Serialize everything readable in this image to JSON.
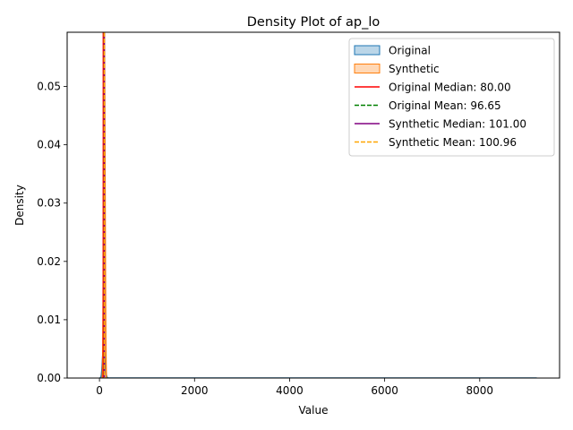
{
  "chart_data": {
    "type": "area",
    "title": "Density Plot of ap_lo",
    "xlabel": "Value",
    "ylabel": "Density",
    "xlim": [
      -680,
      9680
    ],
    "ylim": [
      0,
      0.0593
    ],
    "xticks": [
      0,
      2000,
      4000,
      6000,
      8000
    ],
    "xtick_labels": [
      "0",
      "2000",
      "4000",
      "6000",
      "8000"
    ],
    "yticks": [
      0,
      0.01,
      0.02,
      0.03,
      0.04,
      0.05
    ],
    "ytick_labels": [
      "0.00",
      "0.01",
      "0.02",
      "0.03",
      "0.04",
      "0.05"
    ],
    "grid": false,
    "legend_position": "top-right",
    "series": [
      {
        "name": "Original",
        "kind": "density",
        "color": "#1f77b4",
        "x": [
          -1,
          10,
          20,
          30,
          40,
          50,
          60,
          70,
          80,
          90,
          100,
          110,
          120,
          130,
          140,
          150,
          160,
          170,
          180,
          200,
          300,
          500,
          1000,
          2000,
          4000,
          6000,
          8000,
          9200
        ],
        "y": [
          0,
          1e-05,
          5e-05,
          0.0002,
          0.0006,
          0.0015,
          0.0029,
          0.0043,
          0.0052,
          0.0053,
          0.0048,
          0.0037,
          0.0025,
          0.0015,
          0.0008,
          0.0004,
          0.00018,
          7e-05,
          3e-05,
          1e-05,
          3e-06,
          2e-06,
          2e-06,
          2e-06,
          2e-06,
          2e-06,
          2e-06,
          1e-06
        ]
      },
      {
        "name": "Synthetic",
        "kind": "density",
        "color": "#ff7f0e",
        "x": [
          55,
          62,
          68,
          74,
          80,
          86,
          92,
          98,
          104,
          110,
          116,
          122,
          128,
          134,
          140,
          146
        ],
        "y": [
          0,
          0.0009,
          0.004,
          0.011,
          0.022,
          0.036,
          0.049,
          0.0593,
          0.0593,
          0.052,
          0.04,
          0.027,
          0.015,
          0.007,
          0.0025,
          0
        ]
      }
    ],
    "reference_lines": [
      {
        "name": "Original Median: 80.00",
        "value": 80.0,
        "color": "#ff0000",
        "style": "solid"
      },
      {
        "name": "Original Mean: 96.65",
        "value": 96.65,
        "color": "#008000",
        "style": "dashed"
      },
      {
        "name": "Synthetic Median: 101.00",
        "value": 101.0,
        "color": "#800080",
        "style": "solid"
      },
      {
        "name": "Synthetic Mean: 100.96",
        "value": 100.96,
        "color": "#ffa500",
        "style": "dashed"
      }
    ]
  }
}
